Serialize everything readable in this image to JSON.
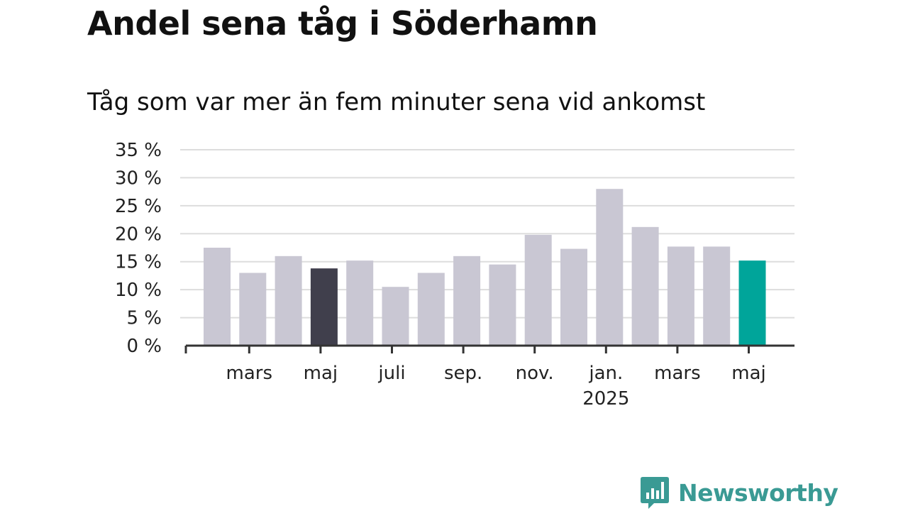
{
  "title": "Andel sena tåg i Söderhamn",
  "subtitle": "Tåg som var mer än fem minuter sena vid ankomst",
  "brand": {
    "name": "Newsworthy",
    "color": "#3a9a94",
    "icon": "chat-bubble-chart-icon"
  },
  "colors": {
    "bar_default": "#c9c7d3",
    "bar_highlight_dark": "#403f4c",
    "bar_highlight_teal": "#00a59a",
    "grid": "#dddddd",
    "axis": "#333333"
  },
  "chart_data": {
    "type": "bar",
    "title": "Andel sena tåg i Söderhamn",
    "subtitle": "Tåg som var mer än fem minuter sena vid ankomst",
    "categories": [
      "2024-02",
      "2024-03",
      "2024-04",
      "2024-05",
      "2024-06",
      "2024-07",
      "2024-08",
      "2024-09",
      "2024-10",
      "2024-11",
      "2024-12",
      "2025-01",
      "2025-02",
      "2025-03",
      "2025-04",
      "2025-05"
    ],
    "values": [
      17.5,
      13.0,
      16.0,
      13.8,
      15.2,
      10.5,
      13.0,
      16.0,
      14.5,
      19.8,
      17.3,
      28.0,
      21.2,
      17.7,
      17.7,
      15.2
    ],
    "highlight": {
      "2024-05": "dark",
      "2025-05": "teal"
    },
    "ylim": [
      0,
      35
    ],
    "yticks": [
      0,
      5,
      10,
      15,
      20,
      25,
      30,
      35
    ],
    "ytick_labels": [
      "0 %",
      "5 %",
      "10 %",
      "15 %",
      "20 %",
      "25 %",
      "30 %",
      "35 %"
    ],
    "xtick_labels": [
      {
        "category": "2024-03",
        "label": "mars",
        "sub": ""
      },
      {
        "category": "2024-05",
        "label": "maj",
        "sub": ""
      },
      {
        "category": "2024-07",
        "label": "juli",
        "sub": ""
      },
      {
        "category": "2024-09",
        "label": "sep.",
        "sub": ""
      },
      {
        "category": "2024-11",
        "label": "nov.",
        "sub": ""
      },
      {
        "category": "2025-01",
        "label": "jan.",
        "sub": "2025"
      },
      {
        "category": "2025-03",
        "label": "mars",
        "sub": ""
      },
      {
        "category": "2025-05",
        "label": "maj",
        "sub": ""
      }
    ],
    "grid": true,
    "legend": "none"
  }
}
